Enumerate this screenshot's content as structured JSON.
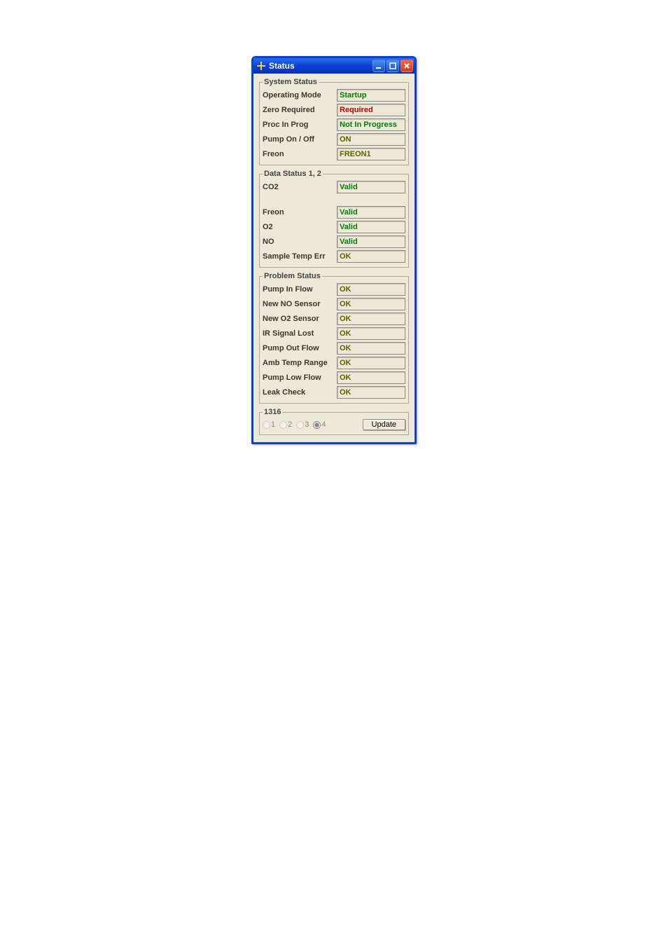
{
  "window": {
    "title": "Status"
  },
  "groups": {
    "system": {
      "legend": "System Status",
      "rows": [
        {
          "label": "Operating Mode",
          "value": "Startup",
          "color": "c-green"
        },
        {
          "label": "Zero Required",
          "value": "Required",
          "color": "c-red"
        },
        {
          "label": "Proc In Prog",
          "value": "Not In Progress",
          "color": "c-green"
        },
        {
          "label": "Pump On / Off",
          "value": "ON",
          "color": "c-olive"
        },
        {
          "label": "Freon",
          "value": "FREON1",
          "color": "c-olive"
        }
      ]
    },
    "data": {
      "legend": "Data Status 1, 2",
      "rows": [
        {
          "label": "CO2",
          "value": "Valid",
          "color": "c-green",
          "gap_after": true
        },
        {
          "label": "Freon",
          "value": "Valid",
          "color": "c-green"
        },
        {
          "label": "O2",
          "value": "Valid",
          "color": "c-green"
        },
        {
          "label": "NO",
          "value": "Valid",
          "color": "c-green"
        },
        {
          "label": "Sample Temp Err",
          "value": "OK",
          "color": "c-olive"
        }
      ]
    },
    "problem": {
      "legend": "Problem Status",
      "rows": [
        {
          "label": "Pump In Flow",
          "value": "OK",
          "color": "c-olive"
        },
        {
          "label": "New NO Sensor",
          "value": "OK",
          "color": "c-olive"
        },
        {
          "label": "New O2 Sensor",
          "value": "OK",
          "color": "c-olive"
        },
        {
          "label": "IR Signal Lost",
          "value": "OK",
          "color": "c-olive"
        },
        {
          "label": "Pump Out Flow",
          "value": "OK",
          "color": "c-olive"
        },
        {
          "label": "Amb Temp Range",
          "value": "OK",
          "color": "c-olive"
        },
        {
          "label": "Pump Low Flow",
          "value": "OK",
          "color": "c-olive"
        },
        {
          "label": "Leak Check",
          "value": "OK",
          "color": "c-olive"
        }
      ]
    },
    "footer": {
      "legend": "1316",
      "radios": [
        "1",
        "2",
        "3",
        "4"
      ],
      "selected": "4",
      "button": "Update"
    }
  },
  "colors": {
    "window_border": "#0a3fd8",
    "client_bg": "#ece9d8",
    "green": "#008000",
    "red": "#c00000",
    "olive": "#606000"
  }
}
